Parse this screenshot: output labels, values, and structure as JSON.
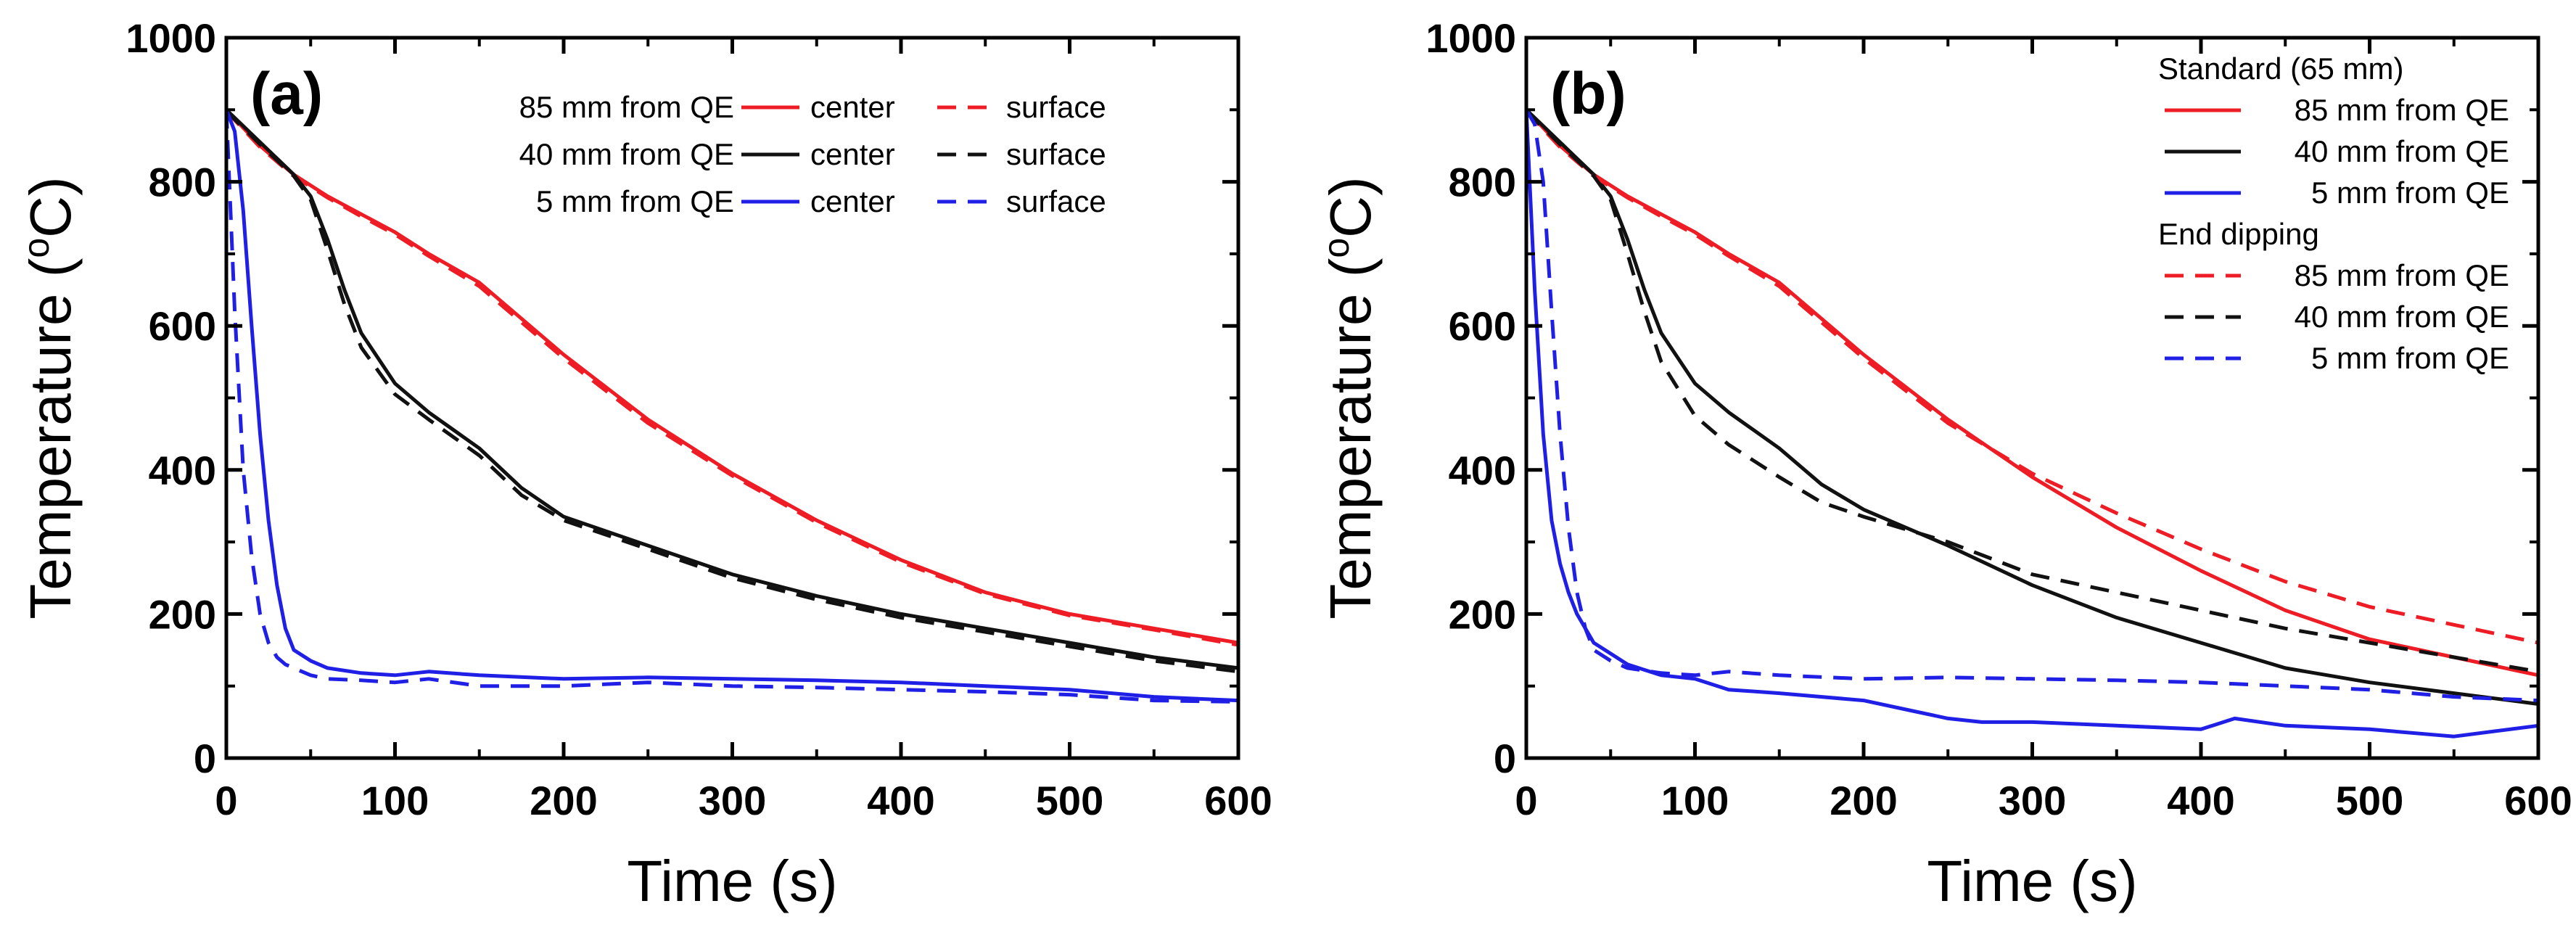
{
  "colors": {
    "red": "#ee1c25",
    "black": "#111111",
    "blue": "#1f1fe6"
  },
  "chart_data": [
    {
      "type": "line",
      "panel_label": "(a)",
      "xlabel": "Time (s)",
      "ylabel_main": "Temperature (",
      "ylabel_sup": "o",
      "ylabel_unit": "C)",
      "xlim": [
        0,
        600
      ],
      "ylim": [
        0,
        1000
      ],
      "xticks": [
        0,
        100,
        200,
        300,
        400,
        500,
        600
      ],
      "yticks": [
        0,
        200,
        400,
        600,
        800,
        1000
      ],
      "legend_position": "top-right",
      "legend_rows": [
        {
          "label": "85 mm from QE",
          "center_label": "center",
          "surface_label": "surface"
        },
        {
          "label": "40 mm from QE",
          "center_label": "center",
          "surface_label": "surface"
        },
        {
          "label": "5 mm from QE",
          "center_label": "center",
          "surface_label": "surface"
        }
      ],
      "series": [
        {
          "name": "85 mm from QE - center",
          "color": "red",
          "dash": false,
          "x": [
            0,
            20,
            40,
            60,
            80,
            100,
            120,
            150,
            200,
            250,
            300,
            350,
            400,
            450,
            500,
            550,
            600
          ],
          "y": [
            900,
            850,
            810,
            780,
            755,
            730,
            700,
            660,
            560,
            470,
            395,
            330,
            275,
            230,
            200,
            180,
            160
          ]
        },
        {
          "name": "85 mm from QE - surface",
          "color": "red",
          "dash": true,
          "x": [
            0,
            20,
            40,
            60,
            80,
            100,
            120,
            150,
            200,
            250,
            300,
            350,
            400,
            450,
            500,
            550,
            600
          ],
          "y": [
            898,
            848,
            808,
            778,
            752,
            727,
            697,
            655,
            555,
            465,
            392,
            327,
            272,
            228,
            198,
            178,
            157
          ]
        },
        {
          "name": "40 mm from QE - center",
          "color": "black",
          "dash": false,
          "x": [
            0,
            20,
            40,
            50,
            60,
            70,
            80,
            100,
            120,
            150,
            175,
            200,
            250,
            300,
            350,
            400,
            450,
            500,
            550,
            600
          ],
          "y": [
            900,
            855,
            810,
            780,
            720,
            650,
            590,
            520,
            480,
            430,
            375,
            335,
            295,
            255,
            225,
            200,
            180,
            160,
            140,
            125
          ]
        },
        {
          "name": "40 mm from QE - surface",
          "color": "black",
          "dash": true,
          "x": [
            0,
            20,
            40,
            50,
            60,
            70,
            80,
            100,
            120,
            150,
            175,
            200,
            250,
            300,
            350,
            400,
            450,
            500,
            550,
            600
          ],
          "y": [
            898,
            852,
            808,
            775,
            705,
            630,
            570,
            505,
            470,
            420,
            365,
            330,
            290,
            250,
            220,
            195,
            175,
            155,
            135,
            120
          ]
        },
        {
          "name": "5 mm from QE - center",
          "color": "blue",
          "dash": false,
          "x": [
            0,
            5,
            10,
            15,
            20,
            25,
            30,
            35,
            40,
            50,
            60,
            80,
            100,
            120,
            150,
            200,
            250,
            300,
            350,
            400,
            450,
            500,
            550,
            600
          ],
          "y": [
            900,
            870,
            760,
            600,
            450,
            330,
            240,
            180,
            150,
            135,
            125,
            118,
            115,
            120,
            115,
            110,
            112,
            110,
            108,
            105,
            100,
            95,
            85,
            80
          ]
        },
        {
          "name": "5 mm from QE - surface",
          "color": "blue",
          "dash": true,
          "x": [
            0,
            5,
            10,
            15,
            20,
            25,
            30,
            35,
            40,
            50,
            60,
            80,
            100,
            120,
            150,
            200,
            250,
            300,
            350,
            400,
            450,
            500,
            550,
            600
          ],
          "y": [
            900,
            620,
            400,
            280,
            200,
            160,
            140,
            130,
            125,
            115,
            110,
            108,
            105,
            110,
            100,
            100,
            105,
            100,
            98,
            95,
            92,
            88,
            80,
            78
          ]
        }
      ]
    },
    {
      "type": "line",
      "panel_label": "(b)",
      "xlabel": "Time (s)",
      "ylabel_main": "Temperature (",
      "ylabel_sup": "o",
      "ylabel_unit": "C)",
      "xlim": [
        0,
        600
      ],
      "ylim": [
        0,
        1000
      ],
      "xticks": [
        0,
        100,
        200,
        300,
        400,
        500,
        600
      ],
      "yticks": [
        0,
        200,
        400,
        600,
        800,
        1000
      ],
      "legend_position": "top-right",
      "legend_groups": [
        {
          "title": "Standard (65 mm)",
          "dash": false,
          "entries": [
            {
              "label": "85 mm from QE",
              "color": "red"
            },
            {
              "label": "40 mm from QE",
              "color": "black"
            },
            {
              "label": "5 mm from QE",
              "color": "blue"
            }
          ]
        },
        {
          "title": "End dipping",
          "dash": true,
          "entries": [
            {
              "label": "85 mm from QE",
              "color": "red"
            },
            {
              "label": "40 mm from QE",
              "color": "black"
            },
            {
              "label": "5 mm from QE",
              "color": "blue"
            }
          ]
        }
      ],
      "series": [
        {
          "name": "Standard (65 mm) - 85 mm from QE",
          "color": "red",
          "dash": false,
          "x": [
            0,
            20,
            40,
            60,
            80,
            100,
            120,
            150,
            200,
            250,
            300,
            350,
            400,
            450,
            500,
            550,
            600
          ],
          "y": [
            900,
            850,
            810,
            780,
            755,
            730,
            700,
            660,
            560,
            470,
            390,
            320,
            260,
            205,
            165,
            140,
            115
          ]
        },
        {
          "name": "Standard (65 mm) - 40 mm from QE",
          "color": "black",
          "dash": false,
          "x": [
            0,
            20,
            40,
            50,
            60,
            70,
            80,
            100,
            120,
            150,
            175,
            200,
            250,
            300,
            350,
            400,
            450,
            500,
            550,
            600
          ],
          "y": [
            900,
            855,
            810,
            780,
            720,
            650,
            590,
            520,
            480,
            430,
            380,
            345,
            295,
            240,
            195,
            160,
            125,
            105,
            90,
            75
          ]
        },
        {
          "name": "Standard (65 mm) - 5 mm from QE",
          "color": "blue",
          "dash": false,
          "x": [
            0,
            5,
            10,
            15,
            20,
            25,
            30,
            40,
            50,
            60,
            80,
            100,
            120,
            150,
            200,
            230,
            250,
            270,
            300,
            350,
            400,
            420,
            450,
            500,
            550,
            600
          ],
          "y": [
            900,
            650,
            450,
            330,
            270,
            230,
            200,
            160,
            145,
            130,
            115,
            110,
            95,
            90,
            80,
            65,
            55,
            50,
            50,
            45,
            40,
            55,
            45,
            40,
            30,
            45
          ]
        },
        {
          "name": "End dipping - 85 mm from QE",
          "color": "red",
          "dash": true,
          "x": [
            0,
            20,
            40,
            60,
            80,
            100,
            120,
            150,
            200,
            250,
            300,
            350,
            400,
            450,
            500,
            550,
            600
          ],
          "y": [
            898,
            848,
            808,
            778,
            752,
            727,
            697,
            655,
            555,
            465,
            395,
            340,
            290,
            245,
            210,
            185,
            160
          ]
        },
        {
          "name": "End dipping - 40 mm from QE",
          "color": "black",
          "dash": true,
          "x": [
            0,
            20,
            40,
            50,
            60,
            70,
            80,
            100,
            120,
            150,
            175,
            200,
            250,
            300,
            350,
            400,
            450,
            500,
            550,
            600
          ],
          "y": [
            898,
            852,
            808,
            775,
            700,
            620,
            550,
            475,
            435,
            390,
            355,
            335,
            300,
            255,
            230,
            205,
            180,
            160,
            140,
            120
          ]
        },
        {
          "name": "End dipping - 5 mm from QE",
          "color": "blue",
          "dash": true,
          "x": [
            0,
            5,
            10,
            15,
            20,
            25,
            30,
            35,
            40,
            50,
            60,
            80,
            100,
            120,
            150,
            200,
            250,
            300,
            350,
            400,
            450,
            500,
            550,
            600
          ],
          "y": [
            900,
            880,
            800,
            620,
            450,
            320,
            230,
            180,
            150,
            135,
            125,
            118,
            115,
            120,
            115,
            110,
            112,
            110,
            108,
            105,
            100,
            95,
            85,
            80
          ]
        }
      ]
    }
  ]
}
